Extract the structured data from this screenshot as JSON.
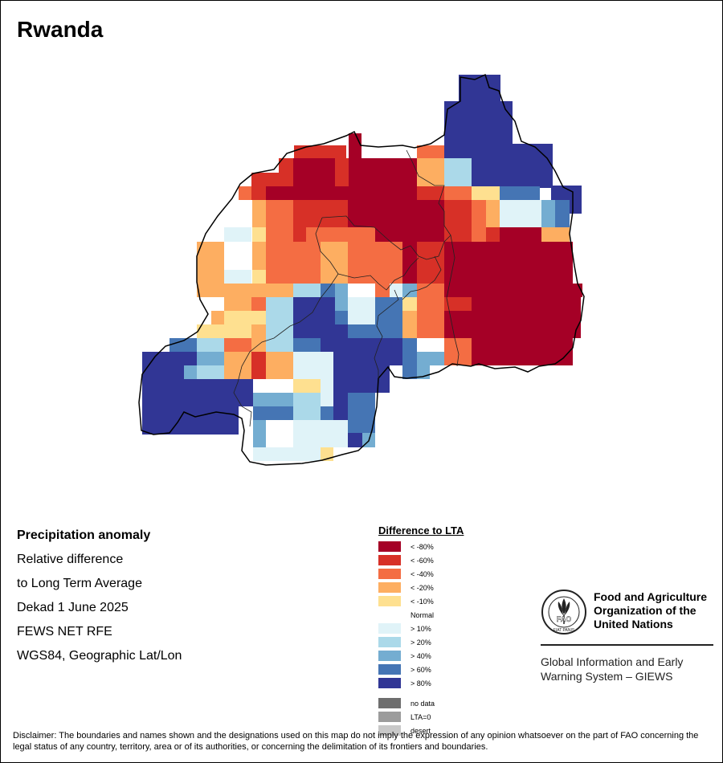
{
  "map": {
    "title": "Rwanda",
    "country": "Rwanda"
  },
  "info": {
    "line1": "Precipitation anomaly",
    "line2": "Relative difference",
    "line3": "to Long Term Average",
    "line4": "Dekad 1 June 2025",
    "line5": "FEWS NET RFE",
    "line6": "WGS84, Geographic Lat/Lon"
  },
  "legend": {
    "title": "Difference to LTA",
    "items": [
      {
        "label": "< -80%",
        "color": "#a50026"
      },
      {
        "label": "< -60%",
        "color": "#d73027"
      },
      {
        "label": "< -40%",
        "color": "#f46d43"
      },
      {
        "label": "< -20%",
        "color": "#fdae61"
      },
      {
        "label": "< -10%",
        "color": "#fee090"
      },
      {
        "label": "Normal",
        "color": "#ffffff"
      },
      {
        "label": "> 10%",
        "color": "#e0f3f8"
      },
      {
        "label": "> 20%",
        "color": "#abd9e9"
      },
      {
        "label": "> 40%",
        "color": "#74add1"
      },
      {
        "label": "> 60%",
        "color": "#4575b4"
      },
      {
        "label": "> 80%",
        "color": "#313695"
      }
    ],
    "extra": [
      {
        "label": "no data",
        "color": "#6e6e6e"
      },
      {
        "label": "LTA=0",
        "color": "#9c9c9c"
      },
      {
        "label": "desert",
        "color": "#c8c8c8"
      }
    ]
  },
  "org": {
    "name_line1": "Food and Agriculture",
    "name_line2": "Organization of the",
    "name_line3": "United Nations",
    "system_line1": "Global Information and Early",
    "system_line2": "Warning System – GIEWS",
    "logo_text": "FAO",
    "logo_motto": "FIAT PANIS"
  },
  "disclaimer": "Disclaimer: The boundaries and names shown and the designations used on this map do not imply the expression of any opinion whatsoever on the part of FAO concerning the legal status of any country, territory, area or of its authorities, or concerning the delimitation of its frontiers and boundaries.",
  "palette": {
    "border": "#000000",
    "background": "#ffffff"
  }
}
